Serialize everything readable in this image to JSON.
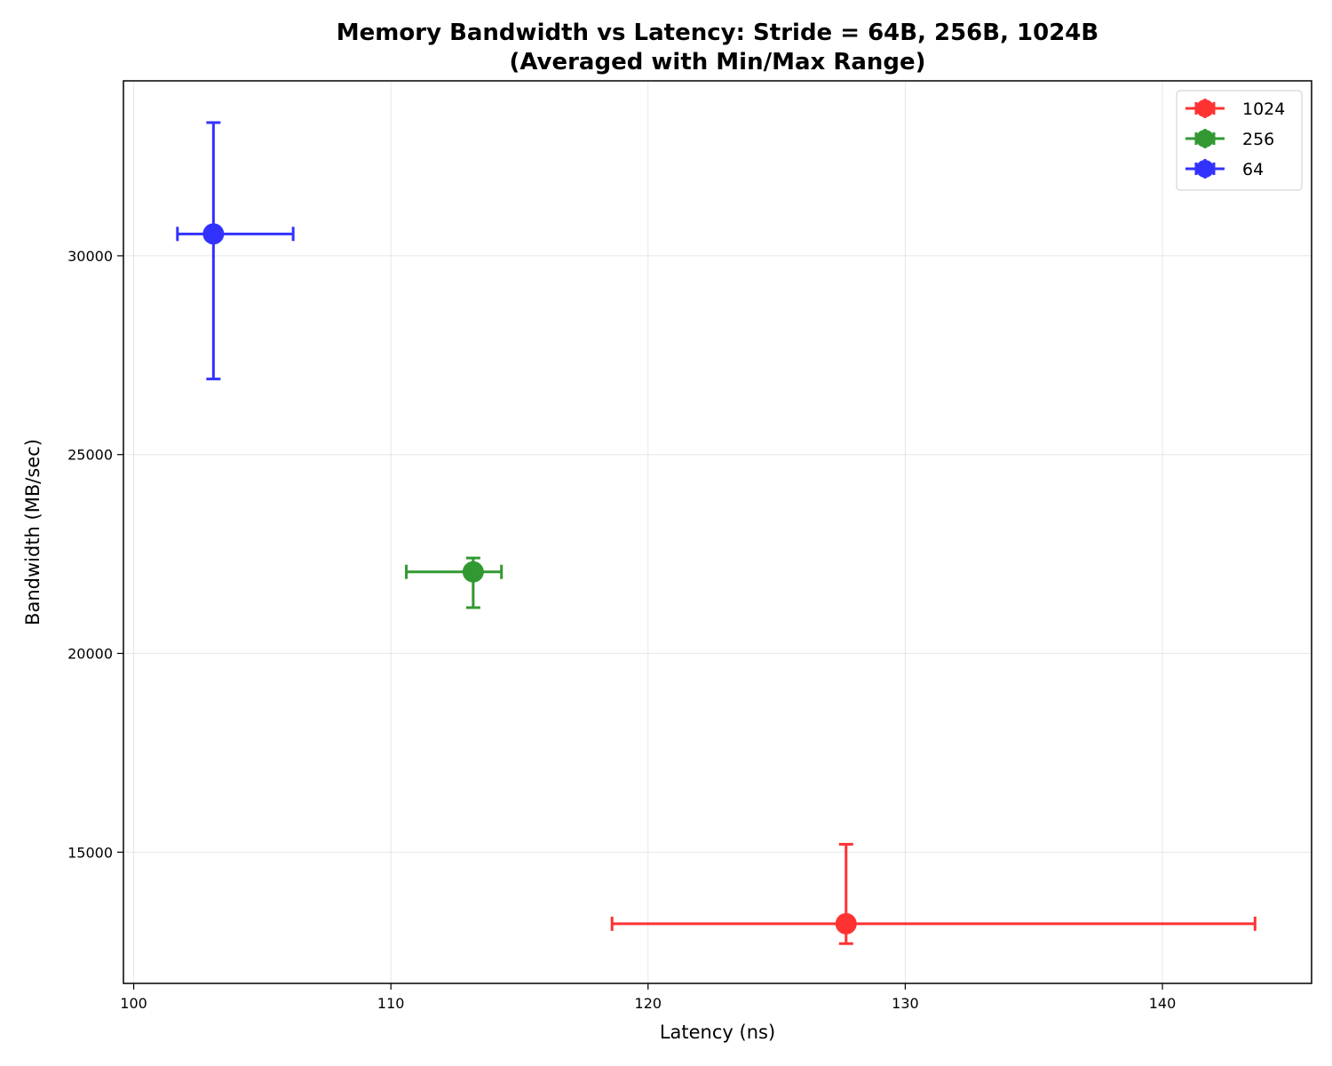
{
  "chart_data": {
    "type": "scatter",
    "title": "Memory Bandwidth vs Latency: Stride = 64B, 256B, 1024B",
    "subtitle": "(Averaged with Min/Max Range)",
    "xlabel": "Latency (ns)",
    "ylabel": "Bandwidth (MB/sec)",
    "xlim": [
      99.6,
      145.8
    ],
    "ylim": [
      11700,
      34400
    ],
    "xticks": [
      100,
      110,
      120,
      130,
      140
    ],
    "yticks": [
      15000,
      20000,
      25000,
      30000
    ],
    "grid": true,
    "legend_position": "top-right",
    "series": [
      {
        "name": "1024",
        "color": "#ff0000",
        "x": 127.7,
        "y": 13200,
        "x_min": 118.6,
        "x_max": 143.6,
        "y_min": 12700,
        "y_max": 15200
      },
      {
        "name": "256",
        "color": "#008000",
        "x": 113.2,
        "y": 22050,
        "x_min": 110.6,
        "x_max": 114.3,
        "y_min": 21150,
        "y_max": 22400
      },
      {
        "name": "64",
        "color": "#0000ff",
        "x": 103.1,
        "y": 30550,
        "x_min": 101.7,
        "x_max": 106.2,
        "y_min": 26900,
        "y_max": 33350
      }
    ]
  }
}
